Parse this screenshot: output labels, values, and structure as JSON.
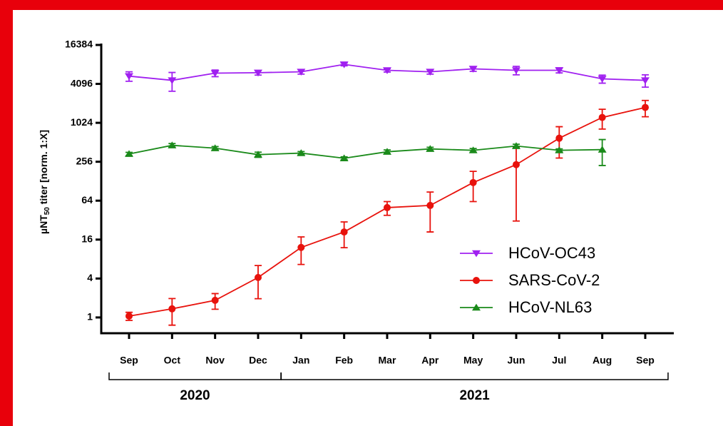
{
  "chart_data": {
    "type": "line",
    "y_label": {
      "text": "µNT",
      "sub": "50",
      "rest": " titer [norm. 1:X]"
    },
    "categories": [
      "Sep",
      "Oct",
      "Nov",
      "Dec",
      "Jan",
      "Feb",
      "Mar",
      "Apr",
      "May",
      "Jun",
      "Jul",
      "Aug",
      "Sep"
    ],
    "x_groups": [
      {
        "label": "2020",
        "from": 0,
        "to": 3
      },
      {
        "label": "2021",
        "from": 4,
        "to": 12
      }
    ],
    "log_scale": true,
    "ylim": [
      0.57,
      16384
    ],
    "yticks": [
      1,
      4,
      16,
      64,
      256,
      1024,
      4096,
      16384
    ],
    "legend": "lower right",
    "series": [
      {
        "name": "HCoV-OC43",
        "color": "#a020f0",
        "marker": "triangle-down",
        "values": [
          5400,
          4650,
          6000,
          6100,
          6300,
          8192,
          6650,
          6300,
          7000,
          6650,
          6650,
          4900,
          4650
        ],
        "errors": [
          900,
          1500,
          700,
          500,
          500,
          400,
          400,
          500,
          600,
          1000,
          600,
          700,
          1000
        ]
      },
      {
        "name": "SARS-CoV-2",
        "color": "#e8120c",
        "marker": "circle",
        "values": [
          1.05,
          1.36,
          1.84,
          4.15,
          12.1,
          21,
          50,
          54,
          122,
          231,
          592,
          1240,
          1770
        ],
        "errors": [
          0.15,
          0.6,
          0.5,
          2.2,
          5.5,
          9,
          12,
          33,
          60,
          200,
          300,
          420,
          500
        ]
      },
      {
        "name": "HCoV-NL63",
        "color": "#1a8a1a",
        "marker": "triangle-up",
        "values": [
          338,
          459,
          415,
          330,
          348,
          290,
          365,
          404,
          385,
          448,
          385,
          394,
          null
        ],
        "errors": [
          20,
          30,
          25,
          30,
          20,
          15,
          25,
          25,
          25,
          30,
          20,
          170,
          null
        ]
      }
    ]
  }
}
